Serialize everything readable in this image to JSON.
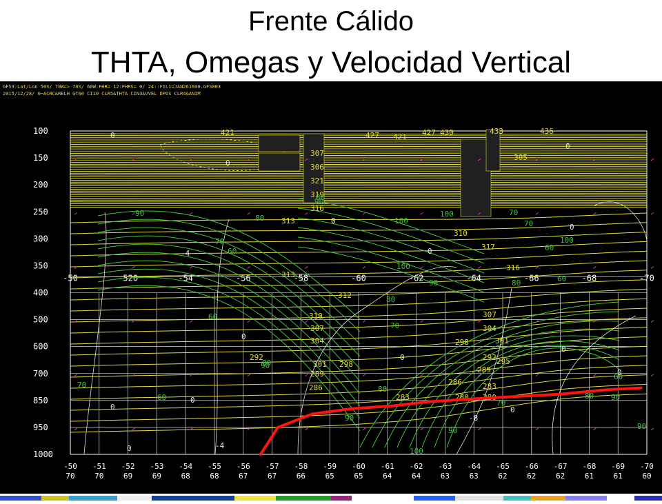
{
  "title": {
    "line1": "Frente Cálido",
    "line2": "THTA, Omegas y Velocidad Vertical"
  },
  "header": {
    "line1": "GFS3:Lat/Lon 50S/ 70W=> 70S/ 60W:FHR= 12:FHRS= 0/ 24::FIL1=JAN261600.GFS003",
    "line2": "2015/12/28/ 0~ACRC&RELH GT60 CI10 CLR5&THTA CIN3&VVEL DPOS CLR4&ANIM"
  },
  "colors": {
    "background": "#000000",
    "theta": "#e3de3c",
    "omega": "#3fc43f",
    "vvel": "#e6e6e6",
    "front": "#ff1414",
    "grid": "#ffffff",
    "wind": "#cc33cc"
  },
  "chart_data": {
    "type": "line",
    "title": "",
    "xlabel": "",
    "ylabel": "",
    "pressure_levels": [
      "100",
      "150",
      "200",
      "250",
      "300",
      "350",
      "400",
      "500",
      "600",
      "700",
      "850",
      "950",
      "1000"
    ],
    "mid_axis_ticks": [
      "-50",
      "-52O",
      "-54",
      "-56",
      "-58",
      "-60",
      "-62",
      "-64",
      "-66",
      "-68",
      "-70"
    ],
    "bottom_axis_lon": [
      "-50",
      "-51",
      "-52",
      "-53",
      "-54",
      "-55",
      "-56",
      "-57",
      "-58",
      "-59",
      "-60",
      "-61",
      "-62",
      "-63",
      "-64",
      "-65",
      "-66",
      "-67",
      "-68",
      "-69",
      "-70"
    ],
    "bottom_axis_lat": [
      "70",
      "70",
      "69",
      "69",
      "68",
      "68",
      "67",
      "67",
      "66",
      "65",
      "65",
      "64",
      "64",
      "63",
      "63",
      "62",
      "62",
      "62",
      "61",
      "61",
      "60"
    ],
    "theta_labels": [
      "421",
      "427",
      "421",
      "427",
      "430",
      "433",
      "436",
      "305",
      "307",
      "306",
      "321",
      "319",
      "316",
      "313",
      "310",
      "317",
      "316",
      "313",
      "312",
      "310",
      "307",
      "304",
      "301",
      "298",
      "295",
      "292",
      "289",
      "286",
      "283",
      "280",
      "307",
      "304",
      "301",
      "298",
      "292",
      "289",
      "286",
      "283",
      "280"
    ],
    "omega_labels": [
      "90",
      "80",
      "70",
      "60",
      "100",
      "100",
      "100",
      "90",
      "80",
      "70",
      "60",
      "90",
      "80",
      "70",
      "60",
      "100",
      "80",
      "70",
      "60",
      "90",
      "80",
      "70",
      "60",
      "90",
      "80",
      "90",
      "100",
      "60",
      "80",
      "90",
      "70",
      "90"
    ],
    "vvel_labels": [
      "0",
      "0",
      "0",
      "0",
      "0",
      "0",
      "-4",
      "0",
      "0",
      "-4",
      "0",
      "0",
      "-8",
      "0",
      "0",
      "0",
      "0"
    ],
    "front_line": [
      [
        -56.6,
        1000
      ],
      [
        -57.2,
        950
      ],
      [
        -58.4,
        900
      ],
      [
        -59.8,
        880
      ],
      [
        -61.2,
        870
      ],
      [
        -62.4,
        855
      ],
      [
        -63.6,
        845
      ],
      [
        -65.2,
        830
      ],
      [
        -67.0,
        815
      ],
      [
        -68.6,
        790
      ],
      [
        -69.8,
        780
      ]
    ]
  }
}
